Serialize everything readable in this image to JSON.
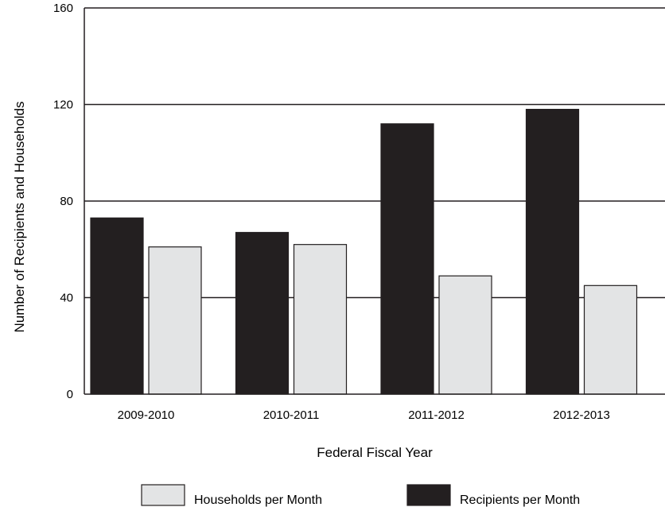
{
  "chart_data": {
    "type": "bar",
    "categories": [
      "2009-2010",
      "2010-2011",
      "2011-2012",
      "2012-2013"
    ],
    "series": [
      {
        "name": "Recipients per Month",
        "values": [
          73,
          67,
          112,
          118
        ],
        "color": "#231f20"
      },
      {
        "name": "Households per Month",
        "values": [
          61,
          62,
          49,
          45
        ],
        "color": "#e3e4e5"
      }
    ],
    "xlabel": "Federal Fiscal Year",
    "ylabel": "Number of Recipients and Households",
    "ylim": [
      0,
      160
    ],
    "yticks": [
      0,
      40,
      80,
      120,
      160
    ],
    "grid": true,
    "legend_position": "bottom",
    "legend_order": [
      "Households per Month",
      "Recipients per Month"
    ]
  }
}
